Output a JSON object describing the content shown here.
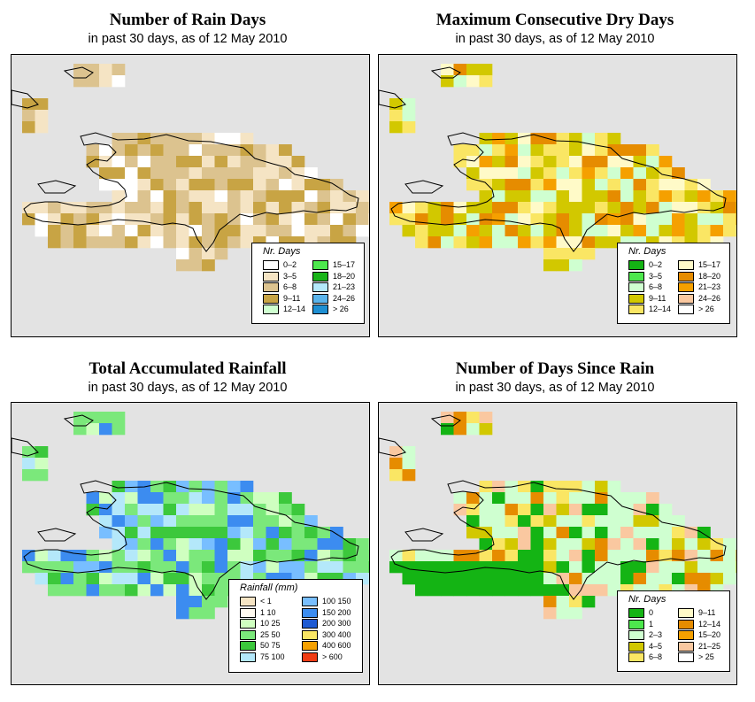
{
  "panels": [
    {
      "id": "rain_days",
      "title": "Number of Rain Days",
      "subtitle": "in past 30 days, as of  12 May 2010",
      "legend_title": "Nr. Days",
      "legend_cols": 2,
      "legend": [
        {
          "label": "0–2",
          "color": "#ffffff"
        },
        {
          "label": "3–5",
          "color": "#f5e4c4"
        },
        {
          "label": "6–8",
          "color": "#dcc38f"
        },
        {
          "label": "9–11",
          "color": "#c8a444"
        },
        {
          "label": "12–14",
          "color": "#cfffd0"
        },
        {
          "label": "15–17",
          "color": "#4de84d"
        },
        {
          "label": "18–20",
          "color": "#19b419"
        },
        {
          "label": "21–23",
          "color": "#b4e8fa"
        },
        {
          "label": "24–26",
          "color": "#5ab4eb"
        },
        {
          "label": "> 26",
          "color": "#1e8fd2"
        }
      ]
    },
    {
      "id": "dry_days",
      "title": "Maximum Consecutive Dry Days",
      "subtitle": "in past 30 days, as of  12 May 2010",
      "legend_title": "Nr. Days",
      "legend_cols": 2,
      "legend": [
        {
          "label": "0–2",
          "color": "#14b414"
        },
        {
          "label": "3–5",
          "color": "#4de84d"
        },
        {
          "label": "6–8",
          "color": "#cfffd0"
        },
        {
          "label": "9–11",
          "color": "#d2c800"
        },
        {
          "label": "12–14",
          "color": "#fae664"
        },
        {
          "label": "15–17",
          "color": "#fffac8"
        },
        {
          "label": "18–20",
          "color": "#e68c00"
        },
        {
          "label": "21–23",
          "color": "#f5a000"
        },
        {
          "label": "24–26",
          "color": "#fac8a0"
        },
        {
          "label": "> 26",
          "color": "#ffffff"
        }
      ]
    },
    {
      "id": "rainfall",
      "title": "Total Accumulated Rainfall",
      "subtitle": "in past 30 days, as of  12 May 2010",
      "legend_title": "Rainfall (mm)",
      "legend_cols": 2,
      "legend": [
        {
          "label": "< 1",
          "color": "#f5e4c4"
        },
        {
          "label": "1    10",
          "color": "#fffaf0"
        },
        {
          "label": "10    25",
          "color": "#cfffc0"
        },
        {
          "label": "25    50",
          "color": "#7be87b"
        },
        {
          "label": "50    75",
          "color": "#3cc83c"
        },
        {
          "label": "75  100",
          "color": "#b4e8fa"
        },
        {
          "label": "100  150",
          "color": "#78beff"
        },
        {
          "label": "150  200",
          "color": "#3c8cf0"
        },
        {
          "label": "200  300",
          "color": "#1e5ad2"
        },
        {
          "label": "300  400",
          "color": "#fae664"
        },
        {
          "label": "400  600",
          "color": "#f5a000"
        },
        {
          "label": "> 600",
          "color": "#f03c14"
        }
      ]
    },
    {
      "id": "since_rain",
      "title": "Number of Days Since Rain",
      "subtitle": "in past 30 days, as of  12 May 2010",
      "legend_title": "Nr. Days",
      "legend_cols": 2,
      "legend": [
        {
          "label": "0",
          "color": "#14b414"
        },
        {
          "label": "1",
          "color": "#4de84d"
        },
        {
          "label": "2–3",
          "color": "#cfffd0"
        },
        {
          "label": "4–5",
          "color": "#d2c800"
        },
        {
          "label": "6–8",
          "color": "#fae664"
        },
        {
          "label": "9–11",
          "color": "#fffac8"
        },
        {
          "label": "12–14",
          "color": "#e68c00"
        },
        {
          "label": "15–20",
          "color": "#f5a000"
        },
        {
          "label": "21–25",
          "color": "#fac8a0"
        },
        {
          "label": "> 25",
          "color": "#ffffff"
        }
      ]
    }
  ]
}
